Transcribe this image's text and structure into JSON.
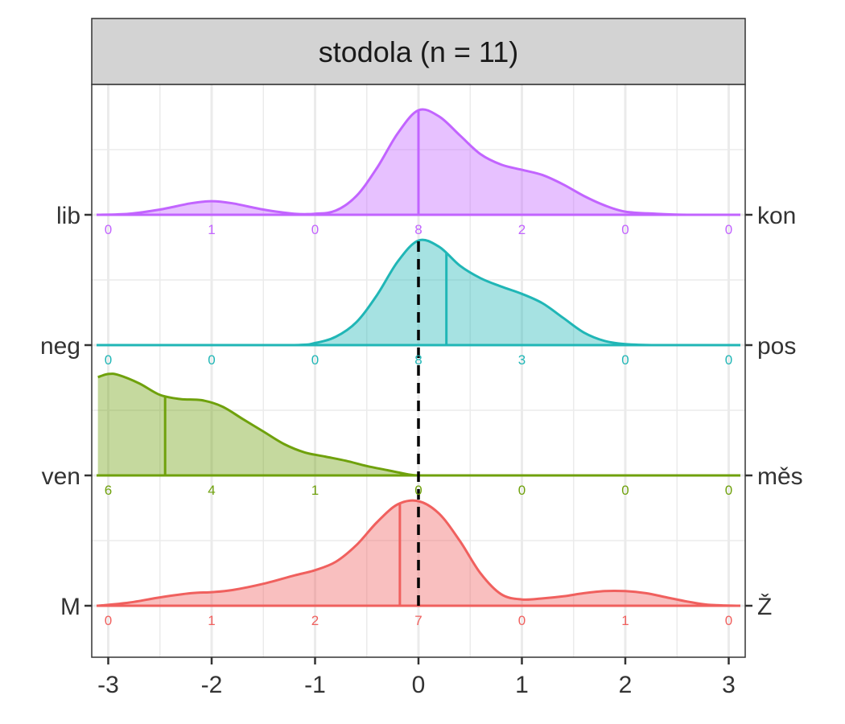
{
  "chart_data": {
    "type": "ridgeline",
    "panel_title": "stodola (n = 11)",
    "x_ticks": [
      "-3",
      "-2",
      "-1",
      "0",
      "1",
      "2",
      "3"
    ],
    "x_range": [
      -3.1,
      3.1
    ],
    "reference_line_x": 0,
    "grid": true,
    "rows": [
      {
        "left_label": "lib",
        "right_label": "kon",
        "color": "#C264FF",
        "median": 0.0,
        "counts": [
          "0",
          "1",
          "0",
          "8",
          "2",
          "0",
          "0"
        ],
        "density_x": [
          -3.1,
          -2.8,
          -2.5,
          -2.2,
          -2.0,
          -1.8,
          -1.5,
          -1.2,
          -1.0,
          -0.8,
          -0.6,
          -0.4,
          -0.2,
          0.0,
          0.2,
          0.4,
          0.6,
          0.8,
          1.0,
          1.2,
          1.4,
          1.6,
          1.8,
          2.0,
          2.3,
          2.6,
          3.1
        ],
        "density_y": [
          0.0,
          0.01,
          0.05,
          0.11,
          0.13,
          0.11,
          0.05,
          0.01,
          0.01,
          0.04,
          0.18,
          0.45,
          0.78,
          1.0,
          0.94,
          0.76,
          0.58,
          0.48,
          0.43,
          0.38,
          0.29,
          0.18,
          0.09,
          0.03,
          0.01,
          0.0,
          0.0
        ]
      },
      {
        "left_label": "neg",
        "right_label": "pos",
        "color": "#20B6B6",
        "median": 0.27,
        "counts": [
          "0",
          "0",
          "0",
          "8",
          "3",
          "0",
          "0"
        ],
        "density_x": [
          -3.1,
          -2.0,
          -1.2,
          -1.0,
          -0.8,
          -0.6,
          -0.4,
          -0.2,
          0.0,
          0.2,
          0.4,
          0.6,
          0.8,
          1.0,
          1.2,
          1.4,
          1.6,
          1.8,
          2.0,
          2.3,
          3.1
        ],
        "density_y": [
          0.0,
          0.0,
          0.0,
          0.02,
          0.08,
          0.22,
          0.48,
          0.8,
          1.0,
          0.94,
          0.76,
          0.64,
          0.56,
          0.49,
          0.4,
          0.26,
          0.12,
          0.04,
          0.01,
          0.0,
          0.0
        ]
      },
      {
        "left_label": "ven",
        "right_label": "měs",
        "color": "#6FA10C",
        "median": -2.45,
        "counts": [
          "6",
          "4",
          "1",
          "0",
          "0",
          "0",
          "0"
        ],
        "density_x": [
          -3.1,
          -3.0,
          -2.9,
          -2.7,
          -2.5,
          -2.3,
          -2.1,
          -1.9,
          -1.7,
          -1.5,
          -1.3,
          -1.1,
          -0.9,
          -0.7,
          -0.5,
          -0.3,
          -0.1,
          0.0,
          0.2,
          1.0,
          3.1
        ],
        "density_y": [
          0.94,
          0.97,
          0.96,
          0.88,
          0.77,
          0.73,
          0.72,
          0.66,
          0.54,
          0.42,
          0.3,
          0.22,
          0.18,
          0.14,
          0.09,
          0.05,
          0.01,
          0.0,
          0.0,
          0.0,
          0.0
        ]
      },
      {
        "left_label": "M",
        "right_label": "Ž",
        "color": "#F0605E",
        "median": -0.18,
        "counts": [
          "0",
          "1",
          "2",
          "7",
          "0",
          "1",
          "0"
        ],
        "density_x": [
          -3.1,
          -2.8,
          -2.5,
          -2.2,
          -2.0,
          -1.8,
          -1.5,
          -1.2,
          -1.0,
          -0.8,
          -0.6,
          -0.4,
          -0.2,
          0.0,
          0.2,
          0.4,
          0.6,
          0.8,
          1.0,
          1.2,
          1.4,
          1.6,
          1.8,
          2.0,
          2.2,
          2.4,
          2.6,
          2.8,
          3.1
        ],
        "density_y": [
          0.0,
          0.03,
          0.08,
          0.12,
          0.13,
          0.15,
          0.21,
          0.29,
          0.34,
          0.42,
          0.58,
          0.8,
          0.97,
          1.0,
          0.88,
          0.62,
          0.31,
          0.11,
          0.06,
          0.07,
          0.09,
          0.12,
          0.14,
          0.14,
          0.12,
          0.08,
          0.04,
          0.01,
          0.0
        ]
      }
    ]
  }
}
